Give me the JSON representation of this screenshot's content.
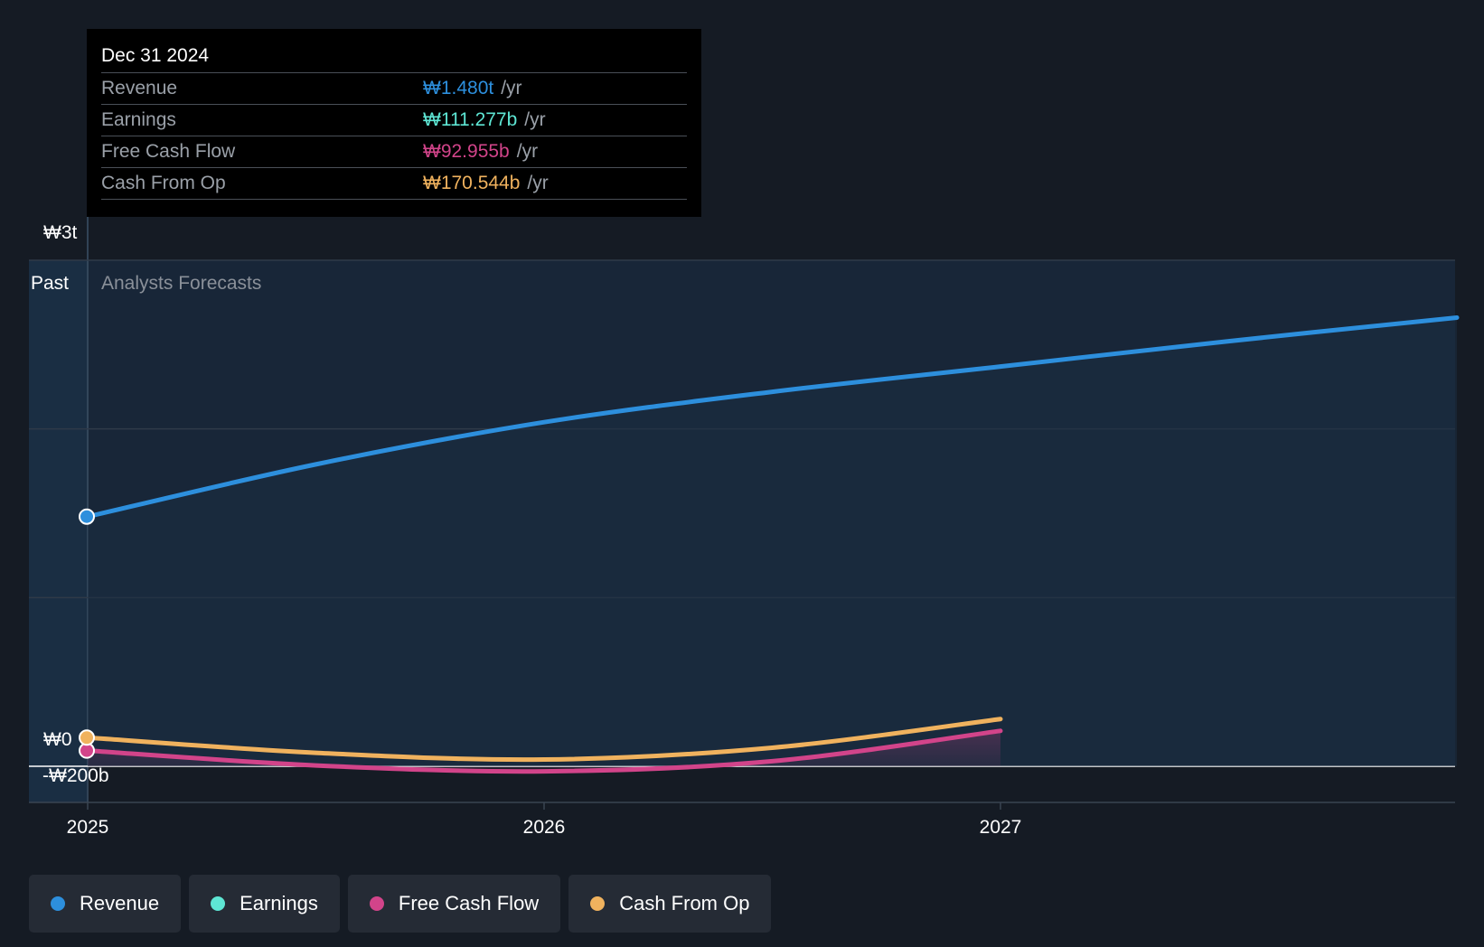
{
  "tooltip": {
    "date": "Dec 31 2024",
    "rows": [
      {
        "label": "Revenue",
        "value": "₩1.480t",
        "unit": "/yr",
        "color": "#2d8fdd"
      },
      {
        "label": "Earnings",
        "value": "₩111.277b",
        "unit": "/yr",
        "color": "#5ee6d4"
      },
      {
        "label": "Free Cash Flow",
        "value": "₩92.955b",
        "unit": "/yr",
        "color": "#d2448a"
      },
      {
        "label": "Cash From Op",
        "value": "₩170.544b",
        "unit": "/yr",
        "color": "#f0b25e"
      }
    ]
  },
  "regions": {
    "past": "Past",
    "forecast": "Analysts Forecasts"
  },
  "legend": [
    {
      "label": "Revenue",
      "color": "#2d8fdd"
    },
    {
      "label": "Earnings",
      "color": "#5ee6d4"
    },
    {
      "label": "Free Cash Flow",
      "color": "#d2448a"
    },
    {
      "label": "Cash From Op",
      "color": "#f0b25e"
    }
  ],
  "chart_data": {
    "type": "line",
    "xlabel": "",
    "ylabel": "",
    "x_ticks": [
      "2025",
      "2026",
      "2027"
    ],
    "y_ticks": [
      "₩3t",
      "₩0",
      "-₩200b"
    ],
    "ylim": [
      -200,
      3000
    ],
    "xlim": [
      2024.0,
      2028.0
    ],
    "past_end": 2025.0,
    "grid": true,
    "series": [
      {
        "name": "Revenue",
        "color": "#2d8fdd",
        "x": [
          2025.0,
          2025.5,
          2026.0,
          2026.5,
          2027.0,
          2027.5,
          2028.0
        ],
        "y": [
          1480,
          1790,
          2040,
          2220,
          2370,
          2520,
          2660
        ]
      },
      {
        "name": "Free Cash Flow",
        "color": "#d2448a",
        "x": [
          2025.0,
          2025.5,
          2026.0,
          2026.5,
          2027.0
        ],
        "y": [
          93,
          5,
          -30,
          30,
          210
        ]
      },
      {
        "name": "Cash From Op",
        "color": "#f0b25e",
        "x": [
          2025.0,
          2025.5,
          2026.0,
          2026.5,
          2027.0
        ],
        "y": [
          170,
          80,
          40,
          110,
          280
        ]
      }
    ]
  }
}
